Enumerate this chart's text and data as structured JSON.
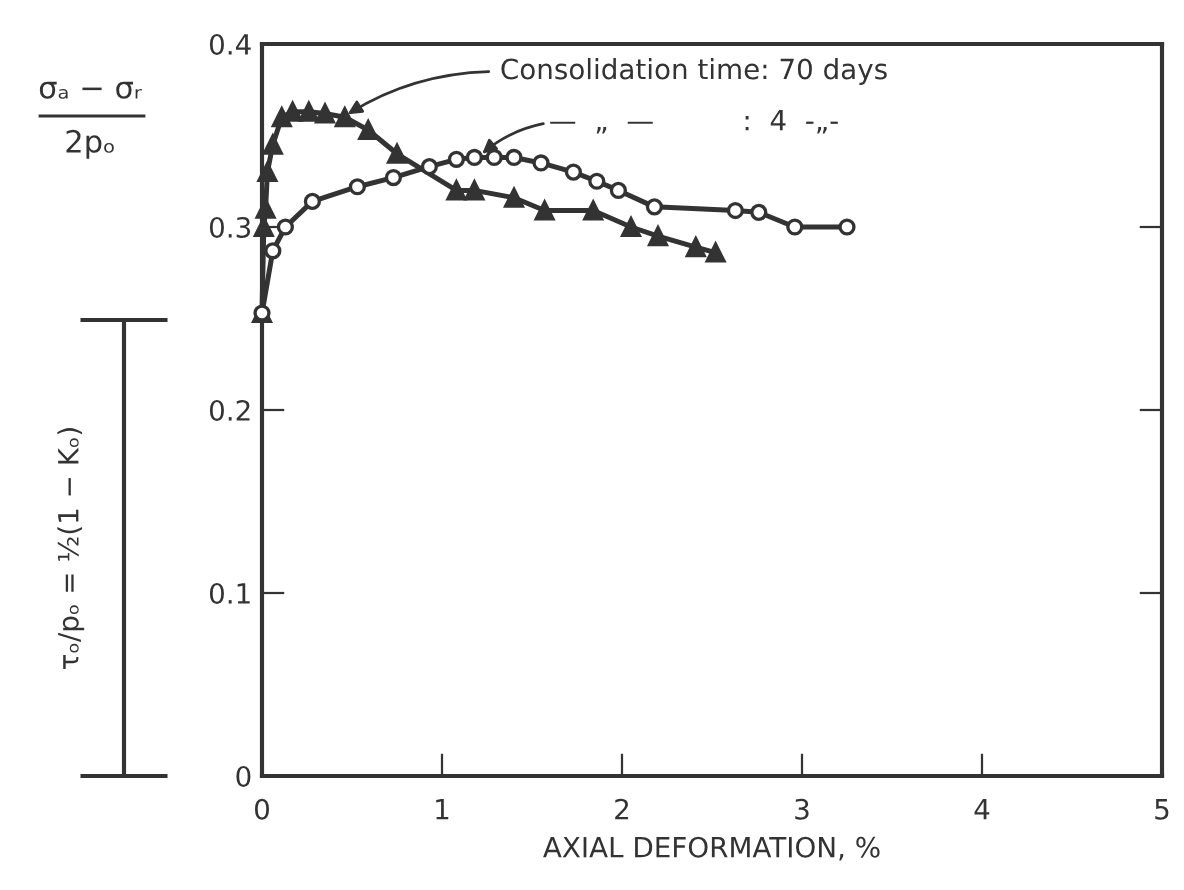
{
  "chart_data": {
    "type": "line",
    "xlabel": "AXIAL DEFORMATION, %",
    "ylabel": "σₐ − σᵣ\n2pₒ",
    "xlim": [
      0,
      5
    ],
    "ylim": [
      0,
      0.4
    ],
    "xticks": [
      0,
      1,
      2,
      3,
      4,
      5
    ],
    "yticks": [
      0,
      0.1,
      0.2,
      0.3,
      0.4
    ],
    "grid": false,
    "legend": false,
    "series": [
      {
        "color": "#333333",
        "marker": "triangle",
        "line_style": "solid",
        "x": [
          0,
          0.01,
          0.02,
          0.03,
          0.06,
          0.11,
          0.17,
          0.26,
          0.35,
          0.46,
          0.59,
          0.75,
          1.08,
          1.18,
          1.4,
          1.57,
          1.84,
          2.05,
          2.2,
          2.41,
          2.52
        ],
        "values": [
          0.253,
          0.3,
          0.31,
          0.33,
          0.345,
          0.36,
          0.363,
          0.363,
          0.362,
          0.36,
          0.353,
          0.34,
          0.32,
          0.32,
          0.316,
          0.309,
          0.309,
          0.3,
          0.295,
          0.289,
          0.286
        ]
      },
      {
        "color": "#333333",
        "marker": "circle",
        "line_style": "solid",
        "x": [
          0,
          0.06,
          0.13,
          0.28,
          0.53,
          0.73,
          0.93,
          1.08,
          1.18,
          1.29,
          1.4,
          1.55,
          1.73,
          1.86,
          1.98,
          2.18,
          2.63,
          2.76,
          2.96,
          3.25
        ],
        "values": [
          0.253,
          0.287,
          0.3,
          0.314,
          0.322,
          0.327,
          0.333,
          0.337,
          0.338,
          0.338,
          0.338,
          0.335,
          0.33,
          0.325,
          0.32,
          0.311,
          0.309,
          0.308,
          0.3,
          0.3
        ]
      }
    ],
    "annotations": [
      {
        "text": "Consolidation time: 70 days",
        "x": 0.45,
        "y": 0.36
      },
      {
        "text": "—  „  —          :  4  -„-",
        "x": 1.2,
        "y": 0.338
      },
      "τₒ/pₒ = ½(1 − Kₒ)"
    ]
  }
}
